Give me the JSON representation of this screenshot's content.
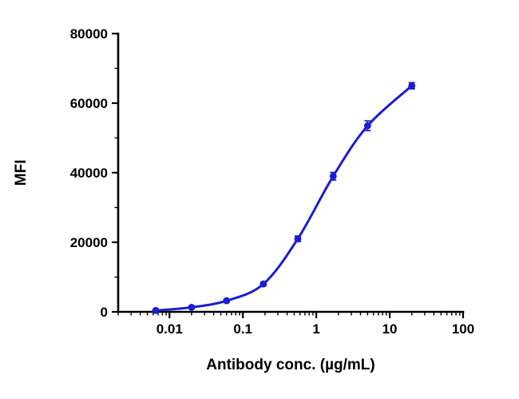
{
  "chart_data": {
    "type": "scatter",
    "subtype": "dose-response-curve",
    "title": "",
    "xlabel": "Antibody conc. (µg/mL)",
    "ylabel": "MFI",
    "xscale": "log",
    "xlim": [
      0.002,
      100
    ],
    "ylim": [
      0,
      80000
    ],
    "xticks": [
      0.01,
      0.1,
      1,
      10,
      100
    ],
    "xtick_labels": [
      "0.01",
      "0.1",
      "1",
      "10",
      "100"
    ],
    "yticks": [
      0,
      20000,
      40000,
      60000,
      80000
    ],
    "ytick_labels": [
      "0",
      "20000",
      "40000",
      "60000",
      "80000"
    ],
    "y_minor_ticks": [
      10000,
      30000,
      50000,
      70000
    ],
    "grid": false,
    "legend_position": "none",
    "series": [
      {
        "name": "MFI",
        "x": [
          0.0065,
          0.02,
          0.06,
          0.19,
          0.56,
          1.7,
          5,
          20
        ],
        "y": [
          400,
          1300,
          3200,
          8000,
          21000,
          39000,
          53500,
          65000
        ],
        "y_err": [
          300,
          300,
          400,
          500,
          800,
          1100,
          1400,
          900
        ]
      }
    ],
    "colors": {
      "marker": "#1c1cd2",
      "line": "#1c1cd2",
      "axis": "#000000",
      "background": "#ffffff"
    }
  }
}
